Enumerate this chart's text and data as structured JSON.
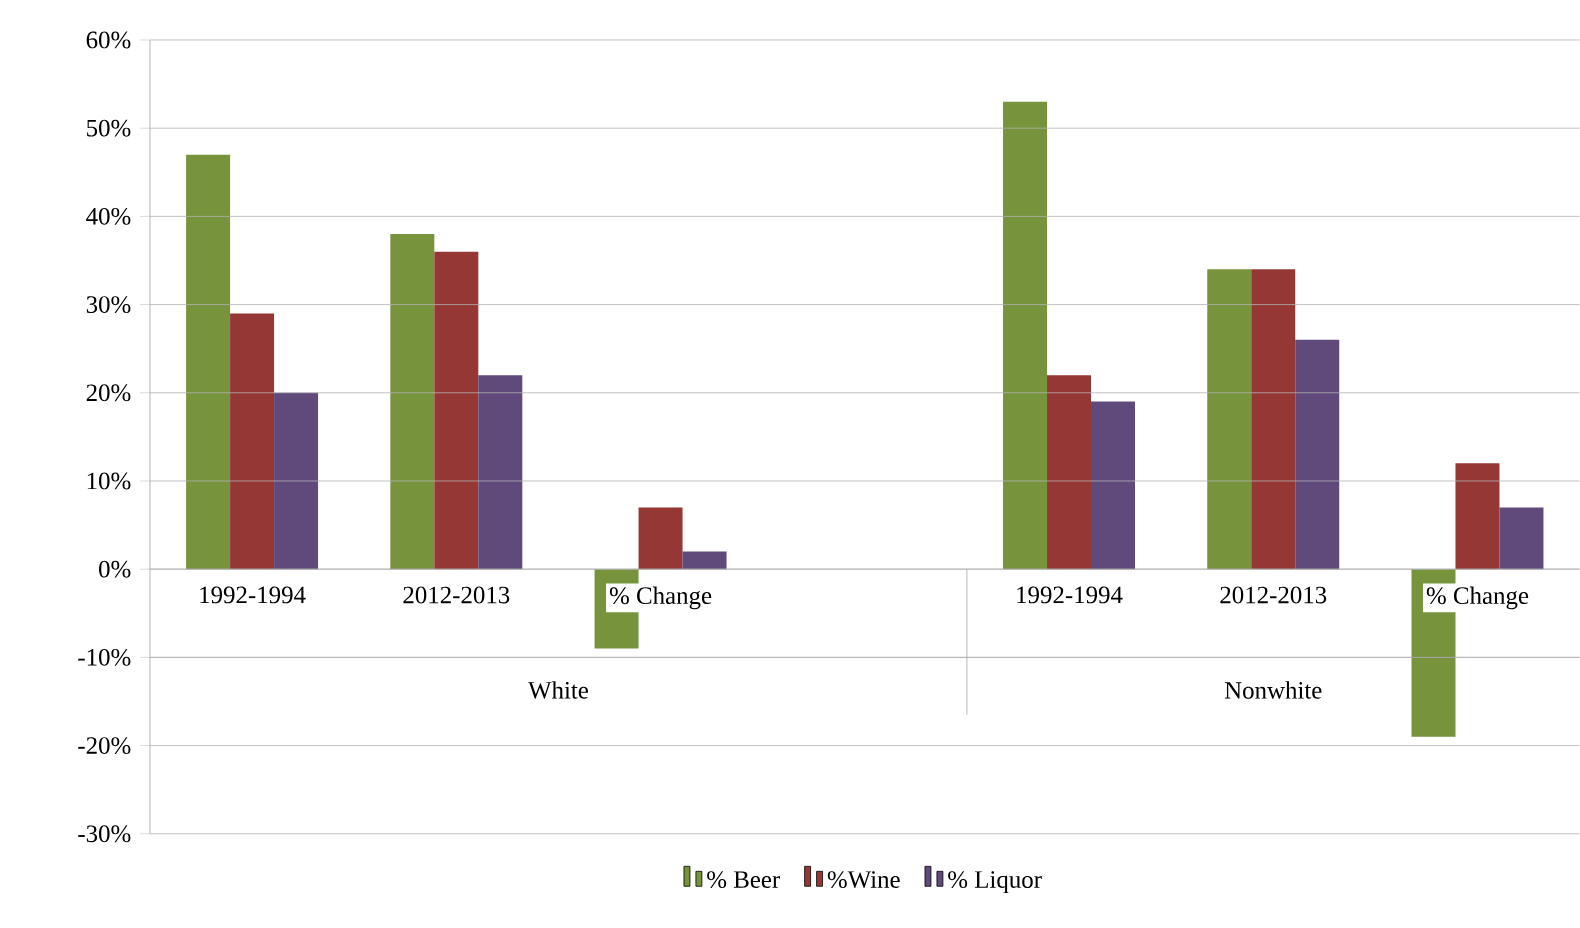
{
  "chart_data": {
    "type": "bar",
    "categories": [
      "1992-1994",
      "2012-2013",
      "% Change",
      null,
      "1992-1994",
      "2012-2013",
      "% Change"
    ],
    "series": [
      {
        "name": "% Beer",
        "color": "#77933c",
        "values": [
          47,
          38,
          -9,
          null,
          53,
          34,
          -19
        ]
      },
      {
        "name": "%Wine",
        "color": "#953735",
        "values": [
          29,
          36,
          7,
          null,
          22,
          34,
          12
        ]
      },
      {
        "name": "% Liquor",
        "color": "#604a7b",
        "values": [
          20,
          22,
          2,
          null,
          19,
          26,
          7
        ]
      }
    ],
    "ylim": [
      -30,
      60
    ],
    "yticks": [
      {
        "value": -30,
        "label": "-30%"
      },
      {
        "value": -20,
        "label": "-20%"
      },
      {
        "value": -10,
        "label": "-10%"
      },
      {
        "value": 0,
        "label": "0%"
      },
      {
        "value": 10,
        "label": "10%"
      },
      {
        "value": 20,
        "label": "20%"
      },
      {
        "value": 30,
        "label": "30%"
      },
      {
        "value": 40,
        "label": "40%"
      },
      {
        "value": 50,
        "label": "50%"
      },
      {
        "value": 60,
        "label": "60%"
      }
    ],
    "grid": "y",
    "legend": "bottom",
    "annotations": [
      "White",
      "Nonwhite"
    ]
  }
}
